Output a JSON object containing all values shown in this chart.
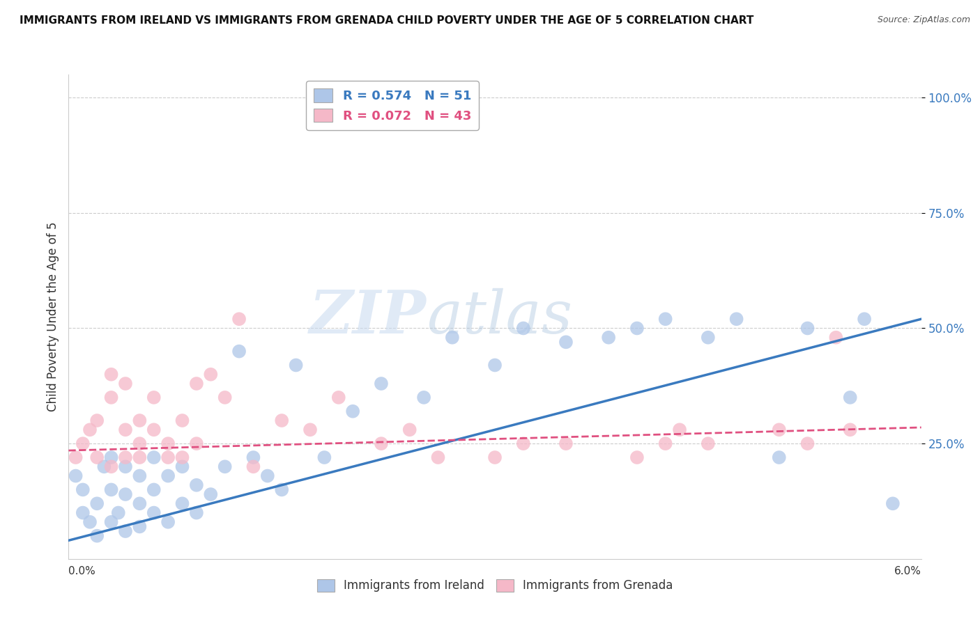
{
  "title": "IMMIGRANTS FROM IRELAND VS IMMIGRANTS FROM GRENADA CHILD POVERTY UNDER THE AGE OF 5 CORRELATION CHART",
  "source": "Source: ZipAtlas.com",
  "ylabel": "Child Poverty Under the Age of 5",
  "x_range": [
    0.0,
    0.06
  ],
  "y_range": [
    0.0,
    1.05
  ],
  "ireland_R": 0.574,
  "ireland_N": 51,
  "grenada_R": 0.072,
  "grenada_N": 43,
  "ireland_color": "#aec6e8",
  "grenada_color": "#f5b8c8",
  "ireland_line_color": "#3a7abf",
  "grenada_line_color": "#e05080",
  "watermark_zip": "ZIP",
  "watermark_atlas": "atlas",
  "ireland_line_y0": 0.04,
  "ireland_line_y1": 0.52,
  "grenada_line_y0": 0.235,
  "grenada_line_y1": 0.285,
  "ireland_scatter_x": [
    0.0005,
    0.001,
    0.001,
    0.0015,
    0.002,
    0.002,
    0.0025,
    0.003,
    0.003,
    0.003,
    0.0035,
    0.004,
    0.004,
    0.004,
    0.005,
    0.005,
    0.005,
    0.006,
    0.006,
    0.006,
    0.007,
    0.007,
    0.008,
    0.008,
    0.009,
    0.009,
    0.01,
    0.011,
    0.012,
    0.013,
    0.014,
    0.015,
    0.016,
    0.018,
    0.02,
    0.022,
    0.025,
    0.027,
    0.03,
    0.032,
    0.035,
    0.038,
    0.04,
    0.042,
    0.045,
    0.047,
    0.05,
    0.052,
    0.055,
    0.056,
    0.058
  ],
  "ireland_scatter_y": [
    0.18,
    0.1,
    0.15,
    0.08,
    0.05,
    0.12,
    0.2,
    0.08,
    0.15,
    0.22,
    0.1,
    0.06,
    0.14,
    0.2,
    0.07,
    0.12,
    0.18,
    0.1,
    0.15,
    0.22,
    0.08,
    0.18,
    0.12,
    0.2,
    0.1,
    0.16,
    0.14,
    0.2,
    0.45,
    0.22,
    0.18,
    0.15,
    0.42,
    0.22,
    0.32,
    0.38,
    0.35,
    0.48,
    0.42,
    0.5,
    0.47,
    0.48,
    0.5,
    0.52,
    0.48,
    0.52,
    0.22,
    0.5,
    0.35,
    0.52,
    0.12
  ],
  "grenada_scatter_x": [
    0.0005,
    0.001,
    0.0015,
    0.002,
    0.002,
    0.003,
    0.003,
    0.003,
    0.004,
    0.004,
    0.004,
    0.005,
    0.005,
    0.005,
    0.006,
    0.006,
    0.007,
    0.007,
    0.008,
    0.008,
    0.009,
    0.009,
    0.01,
    0.011,
    0.012,
    0.013,
    0.015,
    0.017,
    0.019,
    0.022,
    0.024,
    0.026,
    0.03,
    0.032,
    0.035,
    0.04,
    0.042,
    0.043,
    0.045,
    0.05,
    0.052,
    0.054,
    0.055
  ],
  "grenada_scatter_y": [
    0.22,
    0.25,
    0.28,
    0.3,
    0.22,
    0.35,
    0.4,
    0.2,
    0.28,
    0.38,
    0.22,
    0.3,
    0.25,
    0.22,
    0.35,
    0.28,
    0.25,
    0.22,
    0.3,
    0.22,
    0.38,
    0.25,
    0.4,
    0.35,
    0.52,
    0.2,
    0.3,
    0.28,
    0.35,
    0.25,
    0.28,
    0.22,
    0.22,
    0.25,
    0.25,
    0.22,
    0.25,
    0.28,
    0.25,
    0.28,
    0.25,
    0.48,
    0.28
  ]
}
